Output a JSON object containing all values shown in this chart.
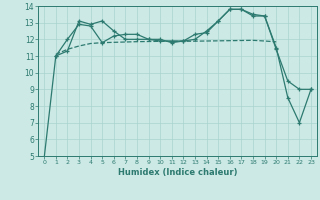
{
  "xlabel": "Humidex (Indice chaleur)",
  "bg_color": "#cce9e5",
  "grid_color": "#aad4cf",
  "line_color": "#2d7a70",
  "xlim": [
    -0.5,
    23.5
  ],
  "ylim": [
    5,
    14
  ],
  "xticks": [
    0,
    1,
    2,
    3,
    4,
    5,
    6,
    7,
    8,
    9,
    10,
    11,
    12,
    13,
    14,
    15,
    16,
    17,
    18,
    19,
    20,
    21,
    22,
    23
  ],
  "yticks": [
    5,
    6,
    7,
    8,
    9,
    10,
    11,
    12,
    13,
    14
  ],
  "series1_x": [
    0,
    1,
    2,
    3,
    4,
    5,
    6,
    7,
    8,
    9,
    10,
    11,
    12,
    13,
    14,
    15,
    16,
    17,
    18,
    19,
    20,
    21,
    22,
    23
  ],
  "series1_y": [
    4.9,
    11.0,
    11.3,
    13.1,
    12.9,
    13.1,
    12.5,
    12.0,
    12.0,
    12.0,
    11.9,
    11.9,
    11.9,
    12.0,
    12.5,
    13.1,
    13.8,
    13.8,
    13.5,
    13.4,
    11.5,
    8.5,
    7.0,
    9.0
  ],
  "series2_x": [
    1,
    2,
    3,
    4,
    5,
    6,
    7,
    8,
    9,
    10,
    11,
    12,
    13,
    14,
    15,
    16,
    17,
    18,
    19,
    20,
    21,
    22,
    23
  ],
  "series2_y": [
    11.0,
    12.0,
    12.9,
    12.8,
    11.8,
    12.2,
    12.3,
    12.3,
    12.0,
    12.0,
    11.8,
    11.9,
    12.3,
    12.4,
    13.1,
    13.8,
    13.8,
    13.4,
    13.4,
    11.4,
    9.5,
    9.0,
    9.0
  ],
  "series3_x": [
    1,
    2,
    3,
    4,
    5,
    6,
    7,
    8,
    9,
    10,
    11,
    12,
    13,
    14,
    15,
    16,
    17,
    18,
    19,
    20
  ],
  "series3_y": [
    11.1,
    11.4,
    11.6,
    11.75,
    11.8,
    11.82,
    11.84,
    11.86,
    11.87,
    11.88,
    11.88,
    11.88,
    11.89,
    11.9,
    11.91,
    11.92,
    11.93,
    11.94,
    11.9,
    11.85
  ]
}
